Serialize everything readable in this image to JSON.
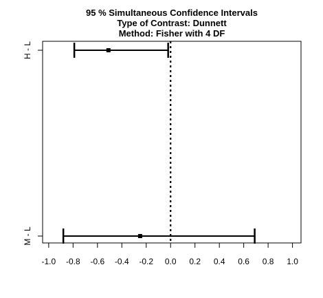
{
  "chart_data": {
    "type": "interval",
    "title": [
      "95 % Simultaneous Confidence Intervals",
      "Type of Contrast: Dunnett",
      "Method: Fisher with 4 DF"
    ],
    "xlabel": "",
    "ylabel": "",
    "xlim": [
      -1.05,
      1.07
    ],
    "x_ticks": [
      "-1.0",
      "-0.8",
      "-0.6",
      "-0.4",
      "-0.2",
      "0.0",
      "0.2",
      "0.4",
      "0.6",
      "0.8",
      "1.0"
    ],
    "x_tick_values": [
      -1.0,
      -0.8,
      -0.6,
      -0.4,
      -0.2,
      0.0,
      0.2,
      0.4,
      0.6,
      0.8,
      1.0
    ],
    "reference_line": 0.0,
    "grid": false,
    "intervals": [
      {
        "label": "H - L",
        "estimate": -0.51,
        "lower": -0.79,
        "upper": -0.02
      },
      {
        "label": "M - L",
        "estimate": -0.25,
        "lower": -0.88,
        "upper": 0.69
      }
    ]
  }
}
